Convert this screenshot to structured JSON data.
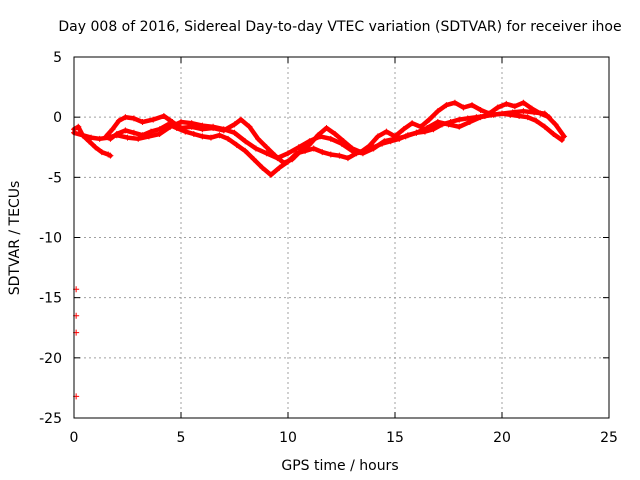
{
  "chart_data": {
    "type": "scatter",
    "title": "Day 008 of 2016, Sidereal Day-to-day VTEC variation (SDTVAR) for receiver ihoe",
    "xlabel": "GPS time / hours",
    "ylabel": "SDTVAR / TECUs",
    "xlim": [
      0,
      25
    ],
    "ylim": [
      -25,
      5
    ],
    "xticks": [
      0,
      5,
      10,
      15,
      20,
      25
    ],
    "yticks": [
      5,
      0,
      -5,
      -10,
      -15,
      -20,
      -25
    ],
    "grid": true,
    "series": [
      {
        "name": "SDTVAR",
        "color": "#ff0000",
        "marker": "plus",
        "tracks": [
          {
            "x": [
              0.0,
              0.2,
              0.4,
              0.7,
              1.0,
              1.3,
              1.6,
              1.7
            ],
            "y": [
              -1.0,
              -0.8,
              -1.5,
              -2.0,
              -2.5,
              -2.9,
              -3.1,
              -3.2
            ]
          },
          {
            "x": [
              0.0,
              0.4,
              0.8,
              1.2,
              1.6,
              2.0,
              2.5,
              3.0,
              3.5,
              4.0,
              4.5,
              5.0,
              5.5,
              6.0,
              6.5,
              7.0,
              7.5,
              8.0,
              8.5,
              9.0,
              9.5,
              10.0,
              10.5,
              11.0,
              11.5,
              12.0,
              12.5,
              13.0,
              13.5,
              14.0,
              14.5,
              15.0,
              15.5,
              16.0,
              16.5,
              17.0,
              17.5,
              18.0,
              18.5,
              19.0,
              19.5,
              20.0,
              20.5,
              21.0,
              21.5,
              22.0,
              22.5,
              22.9
            ],
            "y": [
              -1.3,
              -1.5,
              -1.7,
              -1.8,
              -1.7,
              -1.5,
              -1.7,
              -1.8,
              -1.6,
              -1.4,
              -0.8,
              -0.4,
              -0.5,
              -0.7,
              -0.8,
              -1.0,
              -1.3,
              -2.0,
              -2.6,
              -3.0,
              -3.4,
              -3.0,
              -2.5,
              -2.0,
              -1.6,
              -1.8,
              -2.2,
              -2.8,
              -3.0,
              -2.6,
              -2.0,
              -1.8,
              -1.6,
              -1.3,
              -0.9,
              -0.4,
              -0.6,
              -0.8,
              -0.4,
              0.0,
              0.2,
              0.3,
              0.4,
              0.5,
              0.4,
              0.3,
              -0.6,
              -1.6
            ]
          },
          {
            "x": [
              1.5,
              1.8,
              2.1,
              2.4,
              2.8,
              3.2,
              3.7,
              4.2,
              4.6,
              5.0,
              5.5,
              6.0,
              6.5,
              7.0,
              7.5,
              7.8,
              8.2,
              8.6,
              9.0,
              9.4,
              9.8,
              10.2,
              10.6,
              11.0,
              11.4,
              11.8,
              12.2,
              12.6,
              13.0,
              13.4,
              13.8,
              14.2,
              14.6,
              15.0,
              15.4,
              15.8,
              16.2,
              16.6,
              17.0,
              17.4,
              17.8,
              18.2,
              18.6,
              19.0,
              19.4,
              19.8,
              20.2,
              20.6,
              21.0,
              21.4,
              21.8,
              22.2
            ],
            "y": [
              -1.6,
              -1.0,
              -0.3,
              0.0,
              -0.1,
              -0.4,
              -0.2,
              0.1,
              -0.4,
              -0.9,
              -0.8,
              -1.0,
              -0.9,
              -1.1,
              -0.6,
              -0.2,
              -0.8,
              -1.8,
              -2.5,
              -3.2,
              -3.8,
              -3.5,
              -2.8,
              -2.3,
              -1.5,
              -0.9,
              -1.4,
              -2.0,
              -2.6,
              -2.9,
              -2.4,
              -1.6,
              -1.2,
              -1.6,
              -1.0,
              -0.5,
              -0.8,
              -0.2,
              0.5,
              1.0,
              1.2,
              0.8,
              1.0,
              0.6,
              0.3,
              0.8,
              1.1,
              0.9,
              1.2,
              0.7,
              0.3,
              0.0
            ]
          },
          {
            "x": [
              1.7,
              2.0,
              2.4,
              2.8,
              3.2,
              3.6,
              4.0,
              4.4,
              4.8,
              5.2,
              5.6,
              6.0,
              6.4,
              6.8,
              7.2,
              7.6,
              8.0,
              8.4,
              8.8,
              9.2,
              9.6,
              10.0,
              10.4,
              10.8,
              11.2,
              11.6,
              12.0,
              12.4,
              12.8,
              13.2,
              13.6,
              14.0,
              14.4,
              14.8,
              15.2,
              15.6,
              16.0,
              16.4,
              16.8,
              17.2,
              17.6,
              18.0,
              18.4,
              18.8,
              19.2,
              19.6,
              20.0,
              20.4,
              20.8,
              21.2,
              21.6,
              22.0,
              22.4,
              22.8
            ],
            "y": [
              -1.8,
              -1.4,
              -1.1,
              -1.3,
              -1.5,
              -1.2,
              -1.0,
              -0.6,
              -0.9,
              -1.2,
              -1.4,
              -1.6,
              -1.7,
              -1.5,
              -1.8,
              -2.3,
              -2.8,
              -3.5,
              -4.2,
              -4.8,
              -4.2,
              -3.7,
              -3.0,
              -2.8,
              -2.6,
              -2.9,
              -3.1,
              -3.2,
              -3.4,
              -3.0,
              -2.8,
              -2.5,
              -2.2,
              -2.0,
              -1.8,
              -1.5,
              -1.3,
              -1.2,
              -1.0,
              -0.6,
              -0.4,
              -0.2,
              -0.1,
              0.0,
              0.1,
              0.2,
              0.3,
              0.2,
              0.1,
              0.0,
              -0.3,
              -0.8,
              -1.4,
              -1.9
            ]
          }
        ],
        "outliers": {
          "x": [
            0.1,
            0.1,
            0.1,
            0.1
          ],
          "y": [
            -14.3,
            -16.5,
            -17.9,
            -23.2
          ]
        }
      }
    ]
  }
}
